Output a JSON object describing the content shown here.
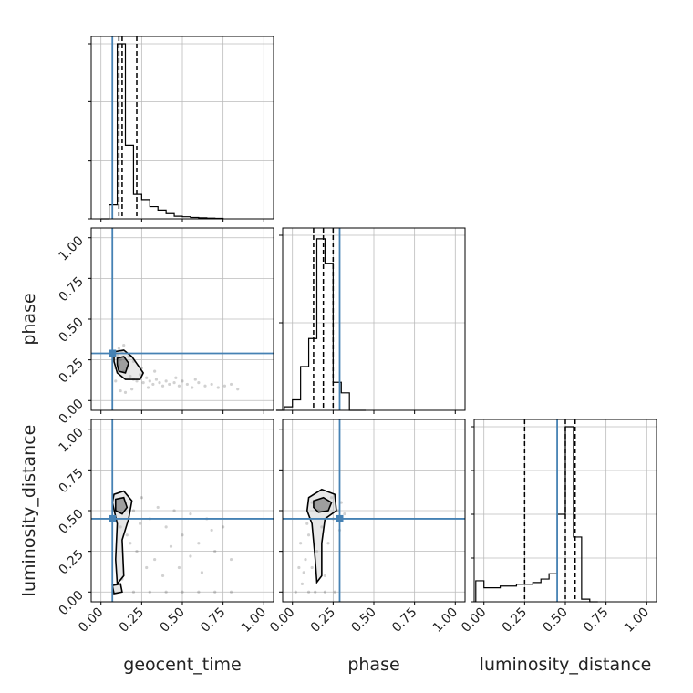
{
  "chart_data": {
    "type": "corner",
    "parameters": [
      "geocent_time",
      "phase",
      "luminosity_distance"
    ],
    "axis_labels": {
      "x": [
        "geocent_time",
        "phase",
        "luminosity_distance"
      ],
      "y": [
        "",
        "phase",
        "luminosity_distance"
      ]
    },
    "range": [
      -0.06,
      1.06
    ],
    "ticks": [
      0.0,
      0.25,
      0.5,
      0.75,
      1.0
    ],
    "tick_labels": [
      "0.00",
      "0.25",
      "0.50",
      "0.75",
      "1.00"
    ],
    "truths": [
      0.07,
      0.29,
      0.45
    ],
    "grid": true,
    "colors": {
      "hist": "#000000",
      "truth": "#4682b4",
      "contour": "#000000",
      "points": "#000000",
      "grid": "#bbbbbb"
    },
    "histograms": [
      {
        "parameter": "geocent_time",
        "bin_edges": [
          0.0,
          0.05,
          0.1,
          0.15,
          0.2,
          0.25,
          0.3,
          0.35,
          0.4,
          0.45,
          0.5,
          0.55,
          0.6,
          0.65,
          0.7,
          0.75
        ],
        "density": [
          0.0,
          0.08,
          1.0,
          0.42,
          0.14,
          0.11,
          0.07,
          0.05,
          0.03,
          0.015,
          0.012,
          0.008,
          0.006,
          0.004,
          0.003
        ],
        "quantiles": [
          0.11,
          0.13,
          0.22
        ],
        "y_ticks": [
          0.0,
          0.33,
          0.67,
          1.0
        ]
      },
      {
        "parameter": "phase",
        "bin_edges": [
          -0.1,
          -0.05,
          0.0,
          0.05,
          0.1,
          0.15,
          0.2,
          0.25,
          0.3,
          0.35,
          0.4,
          0.45
        ],
        "density": [
          0.0,
          0.02,
          0.06,
          0.25,
          0.41,
          0.98,
          0.84,
          0.16,
          0.1,
          0.0,
          0.0
        ],
        "quantiles": [
          0.13,
          0.19,
          0.25
        ],
        "y_ticks": [
          0.0,
          0.5,
          1.0
        ]
      },
      {
        "parameter": "luminosity_distance",
        "bin_edges": [
          -0.05,
          0.0,
          0.05,
          0.1,
          0.15,
          0.2,
          0.25,
          0.3,
          0.35,
          0.4,
          0.45,
          0.5,
          0.55,
          0.6,
          0.65,
          0.7
        ],
        "density": [
          0.12,
          0.08,
          0.08,
          0.09,
          0.09,
          0.1,
          0.1,
          0.11,
          0.13,
          0.16,
          0.5,
          1.0,
          0.37,
          0.015,
          0.0
        ],
        "quantiles": [
          0.25,
          0.5,
          0.56
        ],
        "y_ticks": [
          0.0,
          0.25,
          0.5,
          0.75,
          1.0
        ]
      }
    ],
    "scatter_panels": [
      {
        "x": "geocent_time",
        "y": "phase",
        "points": [
          [
            0.09,
            0.2
          ],
          [
            0.11,
            0.22
          ],
          [
            0.12,
            0.25
          ],
          [
            0.1,
            0.28
          ],
          [
            0.13,
            0.3
          ],
          [
            0.14,
            0.18
          ],
          [
            0.16,
            0.2
          ],
          [
            0.18,
            0.15
          ],
          [
            0.2,
            0.13
          ],
          [
            0.22,
            0.12
          ],
          [
            0.24,
            0.16
          ],
          [
            0.26,
            0.11
          ],
          [
            0.28,
            0.14
          ],
          [
            0.3,
            0.12
          ],
          [
            0.32,
            0.1
          ],
          [
            0.34,
            0.13
          ],
          [
            0.36,
            0.11
          ],
          [
            0.38,
            0.09
          ],
          [
            0.4,
            0.12
          ],
          [
            0.42,
            0.1
          ],
          [
            0.45,
            0.11
          ],
          [
            0.48,
            0.09
          ],
          [
            0.5,
            0.12
          ],
          [
            0.53,
            0.1
          ],
          [
            0.56,
            0.08
          ],
          [
            0.6,
            0.11
          ],
          [
            0.64,
            0.09
          ],
          [
            0.68,
            0.1
          ],
          [
            0.72,
            0.08
          ],
          [
            0.76,
            0.09
          ],
          [
            0.8,
            0.1
          ],
          [
            0.84,
            0.07
          ],
          [
            0.12,
            0.06
          ],
          [
            0.15,
            0.05
          ],
          [
            0.19,
            0.07
          ],
          [
            0.11,
            0.32
          ],
          [
            0.14,
            0.34
          ],
          [
            0.09,
            0.12
          ],
          [
            0.25,
            0.2
          ],
          [
            0.33,
            0.18
          ],
          [
            0.2,
            0.24
          ],
          [
            0.17,
            0.27
          ],
          [
            0.29,
            0.08
          ],
          [
            0.46,
            0.14
          ],
          [
            0.58,
            0.13
          ]
        ],
        "contours": [
          [
            [
              0.08,
              0.3
            ],
            [
              0.14,
              0.31
            ],
            [
              0.19,
              0.27
            ],
            [
              0.26,
              0.17
            ],
            [
              0.24,
              0.13
            ],
            [
              0.15,
              0.13
            ],
            [
              0.1,
              0.17
            ],
            [
              0.08,
              0.24
            ]
          ],
          [
            [
              0.1,
              0.26
            ],
            [
              0.14,
              0.27
            ],
            [
              0.17,
              0.23
            ],
            [
              0.15,
              0.17
            ],
            [
              0.11,
              0.18
            ],
            [
              0.1,
              0.22
            ]
          ]
        ]
      },
      {
        "x": "geocent_time",
        "y": "luminosity_distance",
        "points": [
          [
            0.15,
            0.55
          ],
          [
            0.2,
            0.5
          ],
          [
            0.25,
            0.58
          ],
          [
            0.3,
            0.45
          ],
          [
            0.35,
            0.52
          ],
          [
            0.4,
            0.4
          ],
          [
            0.45,
            0.5
          ],
          [
            0.5,
            0.35
          ],
          [
            0.55,
            0.48
          ],
          [
            0.6,
            0.3
          ],
          [
            0.65,
            0.45
          ],
          [
            0.7,
            0.25
          ],
          [
            0.75,
            0.4
          ],
          [
            0.8,
            0.2
          ],
          [
            0.18,
            0.3
          ],
          [
            0.22,
            0.25
          ],
          [
            0.28,
            0.15
          ],
          [
            0.33,
            0.2
          ],
          [
            0.38,
            0.1
          ],
          [
            0.43,
            0.28
          ],
          [
            0.12,
            0.4
          ],
          [
            0.16,
            0.35
          ],
          [
            0.24,
            0.42
          ],
          [
            0.5,
            0.0
          ],
          [
            0.6,
            0.0
          ],
          [
            0.7,
            0.0
          ],
          [
            0.3,
            0.0
          ],
          [
            0.4,
            0.0
          ],
          [
            0.2,
            0.0
          ],
          [
            0.8,
            0.0
          ],
          [
            0.13,
            0.08
          ],
          [
            0.48,
            0.15
          ],
          [
            0.55,
            0.22
          ],
          [
            0.62,
            0.12
          ],
          [
            0.68,
            0.38
          ]
        ],
        "contours": [
          [
            [
              0.08,
              0.6
            ],
            [
              0.14,
              0.62
            ],
            [
              0.19,
              0.56
            ],
            [
              0.17,
              0.45
            ],
            [
              0.13,
              0.32
            ],
            [
              0.14,
              0.1
            ],
            [
              0.1,
              0.05
            ],
            [
              0.09,
              0.2
            ],
            [
              0.1,
              0.42
            ],
            [
              0.07,
              0.55
            ]
          ],
          [
            [
              0.09,
              0.57
            ],
            [
              0.14,
              0.58
            ],
            [
              0.16,
              0.52
            ],
            [
              0.13,
              0.48
            ],
            [
              0.09,
              0.5
            ]
          ],
          [
            [
              0.07,
              0.04
            ],
            [
              0.12,
              0.05
            ],
            [
              0.13,
              0.0
            ],
            [
              0.08,
              -0.01
            ]
          ]
        ]
      },
      {
        "x": "phase",
        "y": "luminosity_distance",
        "points": [
          [
            0.05,
            0.3
          ],
          [
            0.08,
            0.2
          ],
          [
            0.1,
            0.35
          ],
          [
            0.12,
            0.15
          ],
          [
            0.15,
            0.25
          ],
          [
            0.18,
            0.4
          ],
          [
            0.2,
            0.1
          ],
          [
            0.22,
            0.3
          ],
          [
            0.25,
            0.45
          ],
          [
            0.28,
            0.5
          ],
          [
            0.3,
            0.55
          ],
          [
            0.32,
            0.48
          ],
          [
            0.06,
            0.05
          ],
          [
            0.1,
            0.0
          ],
          [
            0.14,
            0.0
          ],
          [
            0.2,
            0.0
          ],
          [
            0.26,
            0.0
          ],
          [
            0.04,
            0.15
          ],
          [
            0.09,
            0.42
          ],
          [
            0.16,
            0.5
          ],
          [
            0.24,
            0.58
          ],
          [
            0.12,
            0.55
          ],
          [
            0.02,
            0.0
          ],
          [
            0.07,
            0.12
          ],
          [
            0.29,
            0.38
          ]
        ],
        "contours": [
          [
            [
              0.1,
              0.58
            ],
            [
              0.18,
              0.63
            ],
            [
              0.26,
              0.6
            ],
            [
              0.27,
              0.5
            ],
            [
              0.2,
              0.45
            ],
            [
              0.18,
              0.3
            ],
            [
              0.18,
              0.1
            ],
            [
              0.15,
              0.06
            ],
            [
              0.14,
              0.2
            ],
            [
              0.12,
              0.42
            ],
            [
              0.09,
              0.5
            ]
          ],
          [
            [
              0.13,
              0.56
            ],
            [
              0.19,
              0.58
            ],
            [
              0.24,
              0.55
            ],
            [
              0.22,
              0.5
            ],
            [
              0.16,
              0.49
            ],
            [
              0.13,
              0.52
            ]
          ]
        ]
      }
    ]
  }
}
